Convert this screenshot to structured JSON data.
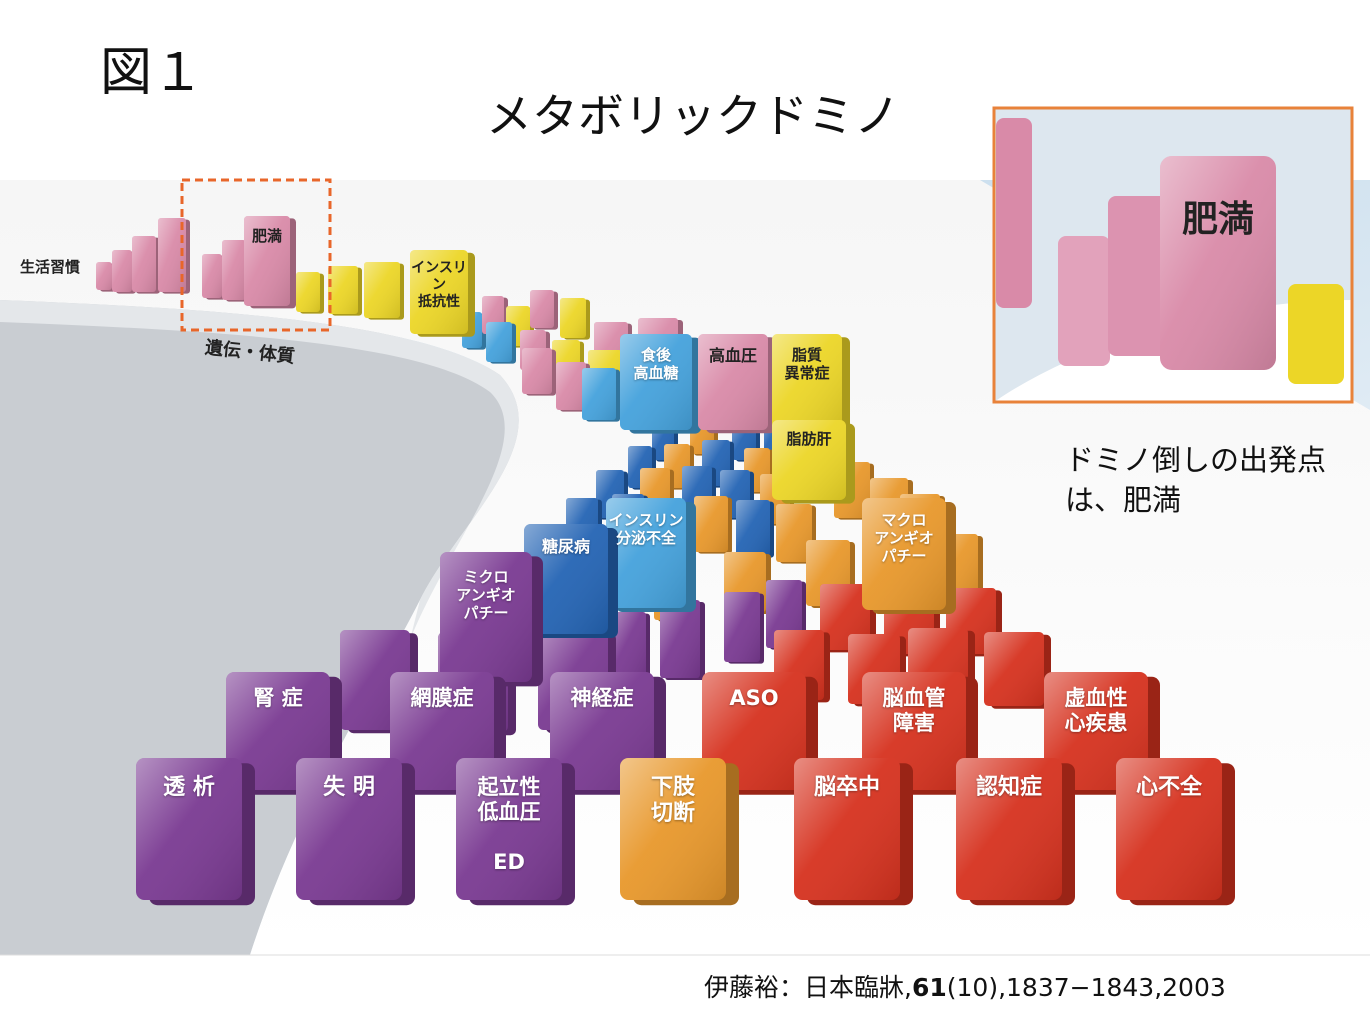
{
  "figure_label": "図１",
  "title": "メタボリックドミノ",
  "note": "ドミノ倒しの出発点は、肥満",
  "citation": {
    "author": "伊藤裕：日本臨牀,",
    "volume": "61",
    "rest": "(10),1837−1843,2003"
  },
  "side_labels": {
    "lifestyle": "生活習慣",
    "heredity": "遺伝・体質"
  },
  "colors": {
    "pink": "#d98aa8",
    "yellow": "#ecd627",
    "light_blue": "#45a2dc",
    "blue": "#2464b4",
    "orange": "#e8982c",
    "purple": "#7a3a92",
    "red": "#d6321f",
    "inset_border": "#e8823a",
    "highlight_border": "#e8662a"
  },
  "labeled_dominoes": [
    {
      "id": "obesity",
      "label": "肥満",
      "color": "pink"
    },
    {
      "id": "insulin-resistance",
      "label": "インスリン\n抵抗性",
      "color": "yellow"
    },
    {
      "id": "postprandial-hyperglycemia",
      "label": "食後\n高血糖",
      "color": "light_blue"
    },
    {
      "id": "hypertension",
      "label": "高血圧",
      "color": "pink"
    },
    {
      "id": "dyslipidemia",
      "label": "脂質\n異常症",
      "color": "yellow"
    },
    {
      "id": "fatty-liver",
      "label": "脂肪肝",
      "color": "yellow"
    },
    {
      "id": "insulin-secretion-failure",
      "label": "インスリン\n分泌不全",
      "color": "light_blue"
    },
    {
      "id": "diabetes",
      "label": "糖尿病",
      "color": "blue"
    },
    {
      "id": "macroangiopathy",
      "label": "マクロ\nアンギオ\nパチー",
      "color": "orange"
    },
    {
      "id": "microangiopathy",
      "label": "ミクロ\nアンギオ\nパチー",
      "color": "purple"
    },
    {
      "id": "nephropathy",
      "label": "腎 症",
      "color": "purple"
    },
    {
      "id": "retinopathy",
      "label": "網膜症",
      "color": "purple"
    },
    {
      "id": "neuropathy",
      "label": "神経症",
      "color": "purple"
    },
    {
      "id": "aso",
      "label": "ASO",
      "color": "red"
    },
    {
      "id": "cerebrovascular-disorder",
      "label": "脳血管\n障害",
      "color": "red"
    },
    {
      "id": "ischemic-heart-disease",
      "label": "虚血性\n心疾患",
      "color": "red"
    },
    {
      "id": "dialysis",
      "label": "透 析",
      "color": "purple"
    },
    {
      "id": "blindness",
      "label": "失 明",
      "color": "purple"
    },
    {
      "id": "orthostatic-hypotension-ed",
      "label": "起立性\n低血圧\n\nED",
      "color": "purple"
    },
    {
      "id": "leg-amputation",
      "label": "下肢\n切断",
      "color": "orange"
    },
    {
      "id": "stroke",
      "label": "脳卒中",
      "color": "red"
    },
    {
      "id": "dementia",
      "label": "認知症",
      "color": "red"
    },
    {
      "id": "heart-failure",
      "label": "心不全",
      "color": "red"
    }
  ],
  "inset": {
    "label": "肥満"
  }
}
